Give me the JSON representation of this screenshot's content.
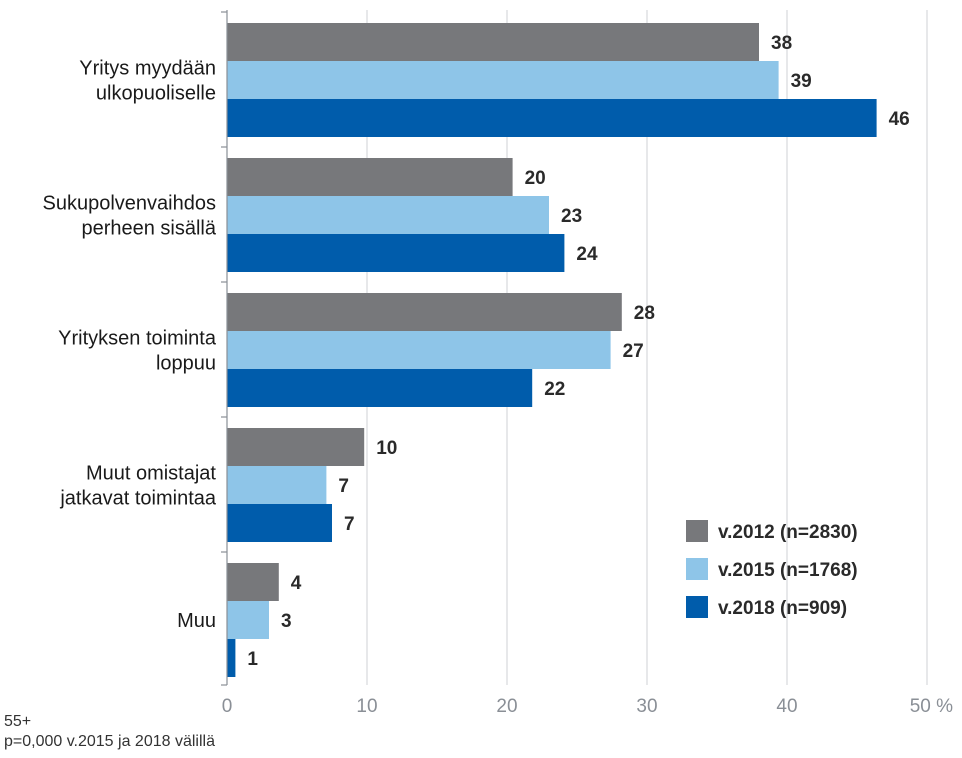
{
  "chart_data": {
    "type": "bar",
    "orientation": "horizontal",
    "categories": [
      [
        "Yritys myydään",
        "ulkopuoliselle"
      ],
      [
        "Sukupolvenvaihdos",
        "perheen sisällä"
      ],
      [
        "Yrityksen toiminta",
        "loppuu"
      ],
      [
        "Muut omistajat",
        "jatkavat toimintaa"
      ],
      [
        "Muu"
      ]
    ],
    "series": [
      {
        "name": "v.2012 (n=2830)",
        "color": "#77787b",
        "values": [
          38,
          20,
          28,
          10,
          4
        ]
      },
      {
        "name": "v.2015 (n=1768)",
        "color": "#8ec5e8",
        "values": [
          39,
          23,
          27,
          7,
          3
        ]
      },
      {
        "name": "v.2018 (n=909)",
        "color": "#005cab",
        "values": [
          46,
          24,
          22,
          7,
          1
        ]
      }
    ],
    "plotted_values": [
      [
        38.0,
        20.4,
        28.2,
        9.8,
        3.7
      ],
      [
        39.4,
        23.0,
        27.4,
        7.1,
        3.0
      ],
      [
        46.4,
        24.1,
        21.8,
        7.5,
        0.6
      ]
    ],
    "xlim": [
      0,
      50
    ],
    "xticks": [
      "0",
      "10",
      "20",
      "30",
      "40",
      "50 %"
    ],
    "grid": true,
    "legend_position": "bottom-right"
  },
  "notes": [
    "55+",
    "p=0,000 v.2015 ja 2018 välillä"
  ]
}
